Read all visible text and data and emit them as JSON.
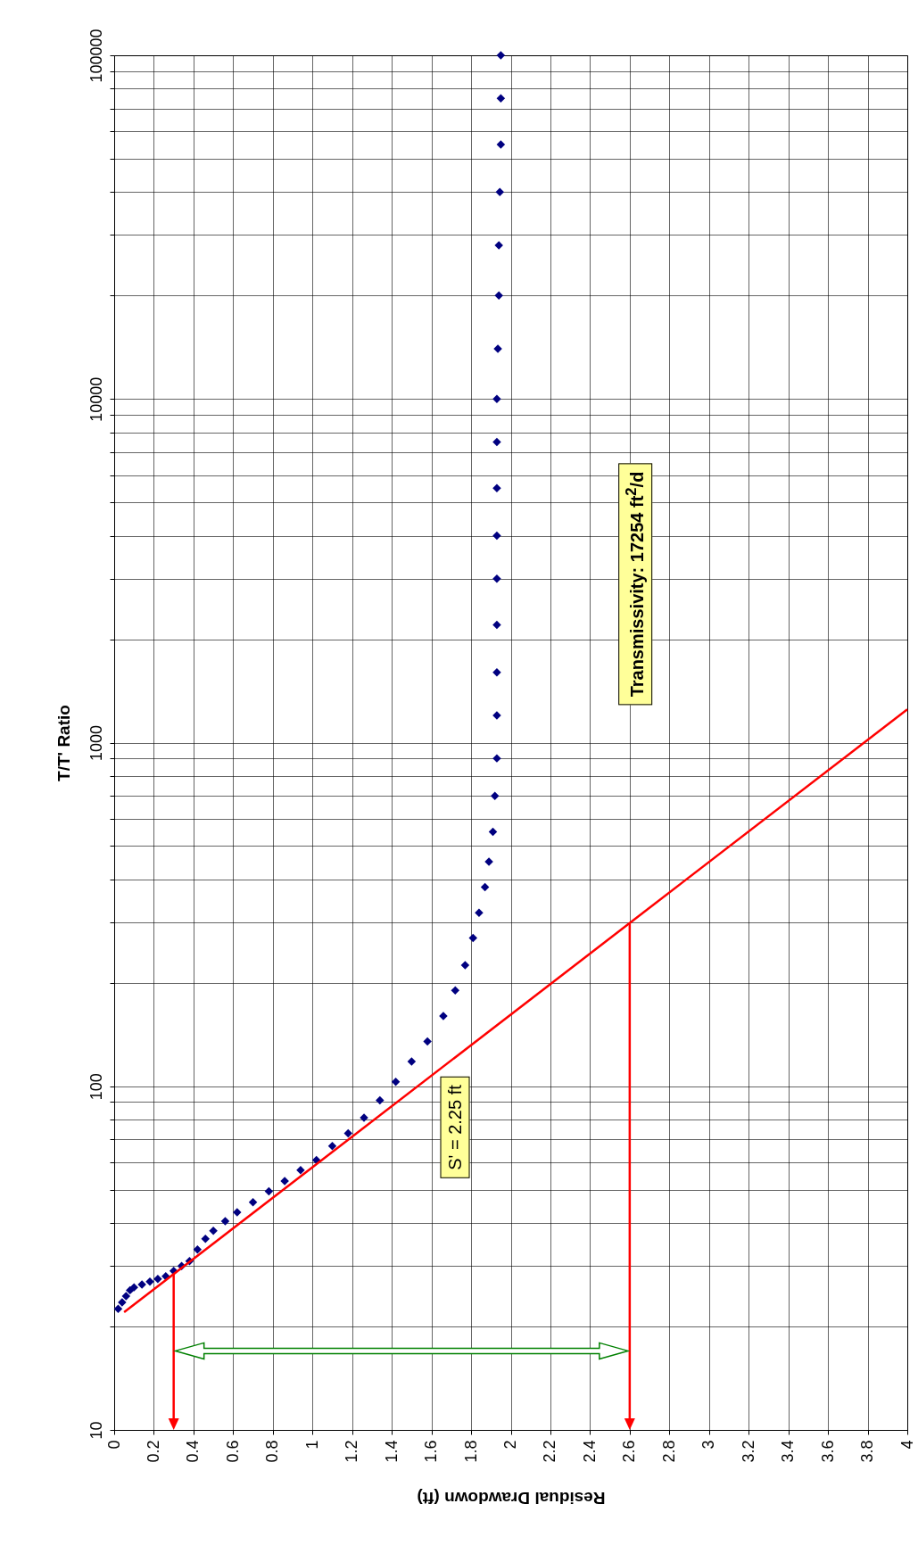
{
  "chart_data": {
    "type": "scatter",
    "xlabel": "Residual Drawdown (ft)",
    "ylabel": "T/T' Ratio",
    "xlim": [
      0,
      4
    ],
    "xticks": [
      0,
      0.2,
      0.4,
      0.6,
      0.8,
      1,
      1.2,
      1.4,
      1.6,
      1.8,
      2,
      2.2,
      2.4,
      2.6,
      2.8,
      3,
      3.2,
      3.4,
      3.6,
      3.8,
      4
    ],
    "ylim": [
      10,
      100000
    ],
    "yticks": [
      10,
      {
        "value": 20,
        "label": null
      },
      {
        "value": 30,
        "label": null
      },
      {
        "value": 40,
        "label": null
      },
      {
        "value": 50,
        "label": null
      },
      {
        "value": 60,
        "label": null
      },
      {
        "value": 70,
        "label": null
      },
      {
        "value": 80,
        "label": null
      },
      {
        "value": 90,
        "label": null
      },
      100,
      {
        "value": 200,
        "label": null
      },
      {
        "value": 300,
        "label": null
      },
      {
        "value": 400,
        "label": null
      },
      {
        "value": 500,
        "label": null
      },
      {
        "value": 600,
        "label": null
      },
      {
        "value": 700,
        "label": null
      },
      {
        "value": 800,
        "label": null
      },
      {
        "value": 900,
        "label": null
      },
      1000,
      {
        "value": 2000,
        "label": null
      },
      {
        "value": 3000,
        "label": null
      },
      {
        "value": 4000,
        "label": null
      },
      {
        "value": 5000,
        "label": null
      },
      {
        "value": 6000,
        "label": null
      },
      {
        "value": 7000,
        "label": null
      },
      {
        "value": 8000,
        "label": null
      },
      {
        "value": 9000,
        "label": null
      },
      10000,
      {
        "value": 20000,
        "label": null
      },
      {
        "value": 30000,
        "label": null
      },
      {
        "value": 40000,
        "label": null
      },
      {
        "value": 50000,
        "label": null
      },
      {
        "value": 60000,
        "label": null
      },
      {
        "value": 70000,
        "label": null
      },
      {
        "value": 80000,
        "label": null
      },
      {
        "value": 90000,
        "label": null
      },
      100000
    ],
    "log": "y",
    "grid": true,
    "marker": "diamond",
    "series": [
      {
        "color": "#000080",
        "x": [
          0.02,
          0.04,
          0.06,
          0.08,
          0.1,
          0.14,
          0.18,
          0.22,
          0.26,
          0.3,
          0.34,
          0.38,
          0.42,
          0.46,
          0.5,
          0.56,
          0.62,
          0.7,
          0.78,
          0.86,
          0.94,
          1.02,
          1.1,
          1.18,
          1.26,
          1.34,
          1.42,
          1.5,
          1.58,
          1.66,
          1.72,
          1.77,
          1.81,
          1.84,
          1.87,
          1.89,
          1.91,
          1.92,
          1.93,
          1.93,
          1.93,
          1.93,
          1.93,
          1.93,
          1.93,
          1.93,
          1.93,
          1.935,
          1.94,
          1.94,
          1.945,
          1.95,
          1.95,
          1.95
        ],
        "values": [
          22.5,
          23.5,
          24.5,
          25.5,
          26,
          26.5,
          27,
          27.5,
          28,
          29,
          30,
          31,
          33.5,
          36,
          38,
          40.5,
          43,
          46,
          49.5,
          53,
          57,
          61,
          67,
          73,
          81,
          91,
          103,
          118,
          135,
          160,
          190,
          225,
          270,
          320,
          380,
          450,
          550,
          700,
          900,
          1200,
          1600,
          2200,
          3000,
          4000,
          5500,
          7500,
          10000,
          14000,
          20000,
          28000,
          40000,
          55000,
          75000,
          100000
        ]
      },
      {
        "type": "line",
        "marker": "none",
        "color": "#ff0000",
        "x": [
          0.05,
          4
        ],
        "values": [
          22,
          1250
        ]
      }
    ],
    "annotations": [
      "S' = 2.25 ft",
      "Transmissivity:  17254 ft$^{2}$/d"
    ]
  }
}
